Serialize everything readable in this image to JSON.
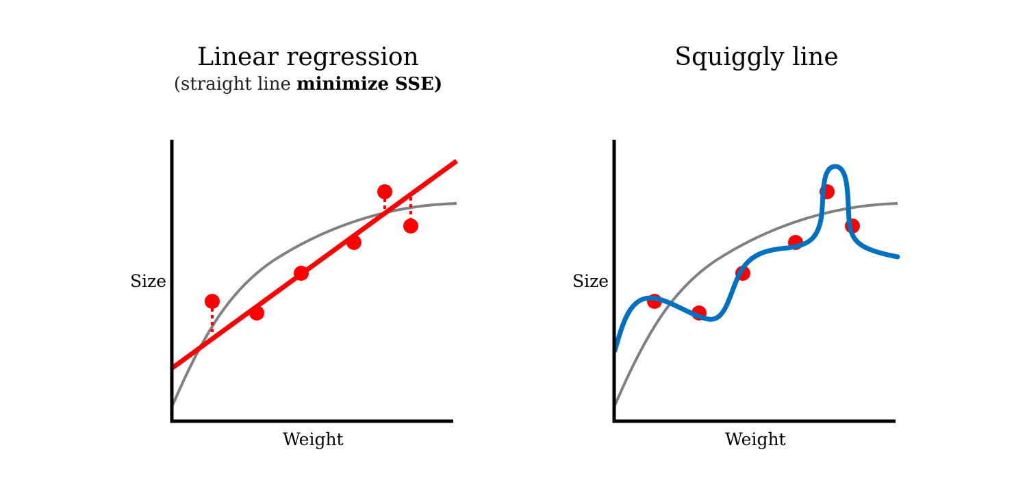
{
  "left_panel": {
    "title": "Linear regression",
    "subtitle_plain": "(straight line ",
    "subtitle_bold": "minimize SSE)",
    "xlabel": "Weight",
    "ylabel": "Size"
  },
  "right_panel": {
    "title": "Squiggly line",
    "xlabel": "Weight",
    "ylabel": "Size"
  },
  "colors": {
    "axis": "#000000",
    "true_curve": "#808080",
    "linear_fit": "#ff0000",
    "points": "#ff0000",
    "residuals": "#ff0000",
    "squiggle": "#0070c0"
  }
}
